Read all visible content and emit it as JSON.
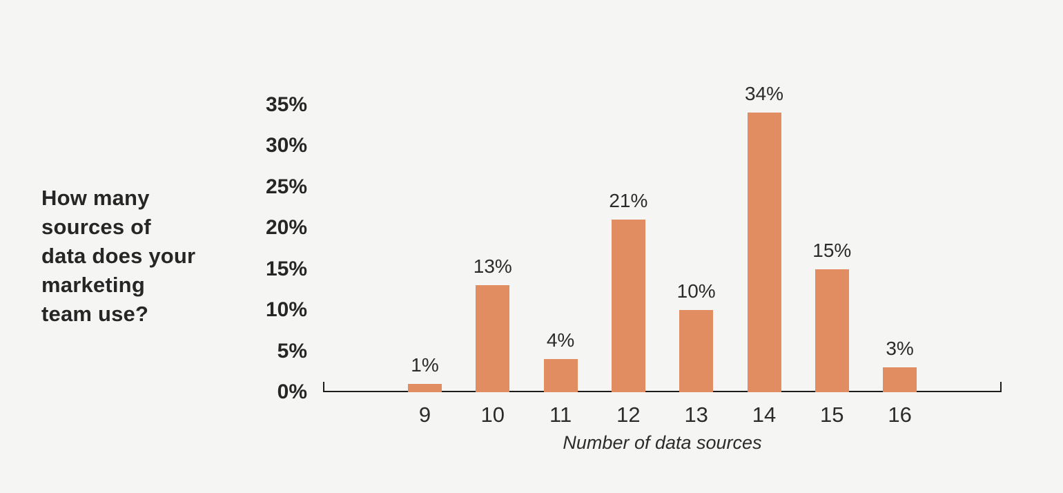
{
  "page": {
    "background_color": "#f5f5f3"
  },
  "title": {
    "display": "How many\nsources of\ndata does your\nmarketing\nteam use?"
  },
  "chart_data": {
    "type": "bar",
    "title": "How many sources of data does your marketing team use?",
    "categories": [
      "9",
      "10",
      "11",
      "12",
      "13",
      "14",
      "15",
      "16"
    ],
    "values": [
      1,
      13,
      4,
      21,
      10,
      34,
      15,
      3
    ],
    "value_labels": [
      "1%",
      "13%",
      "4%",
      "21%",
      "10%",
      "34%",
      "15%",
      "3%"
    ],
    "xlabel": "Number of data sources",
    "ylabel": "",
    "ylim": [
      0,
      35
    ],
    "y_tick_values": [
      0,
      5,
      10,
      15,
      20,
      25,
      30,
      35
    ],
    "y_tick_labels": [
      "0%",
      "5%",
      "10%",
      "15%",
      "20%",
      "25%",
      "30%",
      "35%"
    ],
    "grid": false,
    "legend": "none",
    "bar_color": "#e18c61",
    "axis_color": "#1c1c1c",
    "text_color": "#2b2b2b"
  }
}
